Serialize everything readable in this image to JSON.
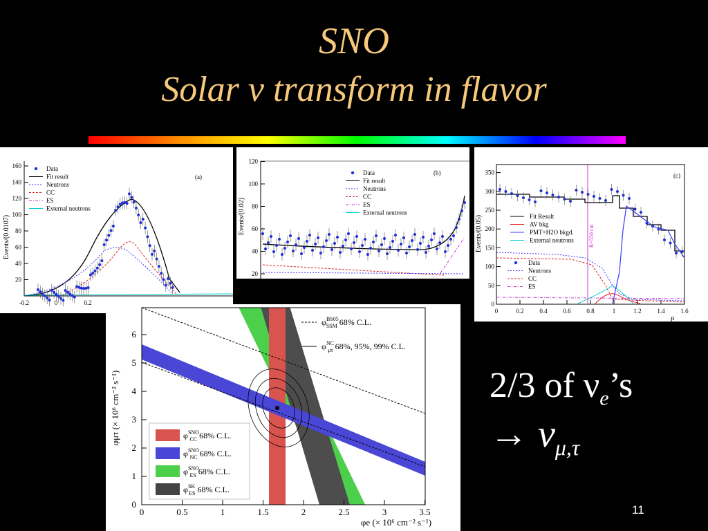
{
  "slide": {
    "title_line1": "SNO",
    "title_line2_a": "Solar ",
    "title_line2_nu": "ν",
    "title_line2_b": " transform in flavor",
    "claim_a": "2/3 of ",
    "claim_nu": "ν",
    "claim_sub": "e",
    "claim_b": "’s",
    "arrow": "→ ",
    "nu2": "ν",
    "nu2_sub": "μ,τ",
    "page_number": "11"
  },
  "panel_a": {
    "tag": "(a)",
    "ylabel": "Events/(0.0107)",
    "yticks": [
      "20",
      "40",
      "60",
      "80",
      "100",
      "120",
      "140",
      "160"
    ],
    "xticks": [
      "-0.2",
      "0",
      "0.2"
    ],
    "legend": [
      "Data",
      "Fit result",
      "Neutrons",
      "CC",
      "ES",
      "External neutrons"
    ]
  },
  "panel_b": {
    "tag": "(b)",
    "ylabel": "Events/(0.02)",
    "yticks": [
      "20",
      "40",
      "60",
      "80",
      "100",
      "120"
    ],
    "legend": [
      "Data",
      "Fit result",
      "Neutrons",
      "CC",
      "ES",
      "External neutrons"
    ]
  },
  "panel_c": {
    "tag": "(c)",
    "ylabel": "Events/(0.05)",
    "yticks": [
      "0",
      "50",
      "100",
      "150",
      "200",
      "250",
      "300",
      "350"
    ],
    "xticks": [
      "0",
      "0.2",
      "0.4",
      "0.6",
      "0.8",
      "1",
      "1.2",
      "1.4",
      "1.6"
    ],
    "xlabel": "ρ",
    "marker_label": "R=550 cm",
    "legend_top": [
      "Fit Result",
      "AV bkg",
      "PMT+H2O bkgd.",
      "External neutrons"
    ],
    "legend_bottom": [
      "Data",
      "Neutrons",
      "CC",
      "ES"
    ]
  },
  "panel_d": {
    "ylabel": "φμτ (× 10⁶ cm⁻² s⁻¹)",
    "xlabel": "φe (× 10⁶ cm⁻² s⁻¹)",
    "xticks": [
      "0",
      "0.5",
      "1",
      "1.5",
      "2",
      "2.5",
      "3",
      "3.5"
    ],
    "yticks": [
      "0",
      "1",
      "2",
      "3",
      "4",
      "5",
      "6"
    ],
    "legend_top": [
      {
        "sym": "φ",
        "sup": "BS05",
        "sub": "SSM",
        "text": " 68% C.L."
      },
      {
        "sym": "φ",
        "sup": "NC",
        "sub": "μτ",
        "text": " 68%, 95%, 99% C.L."
      }
    ],
    "legend_bottom": [
      {
        "sym": "φ",
        "sup": "SNO",
        "sub": "CC",
        "text": " 68% C.L.",
        "color": "#d9534f"
      },
      {
        "sym": "φ",
        "sup": "SNO",
        "sub": "NC",
        "text": " 68% C.L.",
        "color": "#4a46d6"
      },
      {
        "sym": "φ",
        "sup": "SNO",
        "sub": "ES",
        "text": " 68% C.L.",
        "color": "#4cd04c"
      },
      {
        "sym": "φ",
        "sup": "SK",
        "sub": "ES",
        "text": " 68% C.L.",
        "color": "#444444"
      }
    ]
  },
  "colors": {
    "title": "#f7c97b",
    "cc_band": "#d9534f",
    "nc_band": "#4a46d6",
    "es_band": "#4cd04c",
    "sk_band": "#444444",
    "data_points": "#1f2fd6"
  }
}
